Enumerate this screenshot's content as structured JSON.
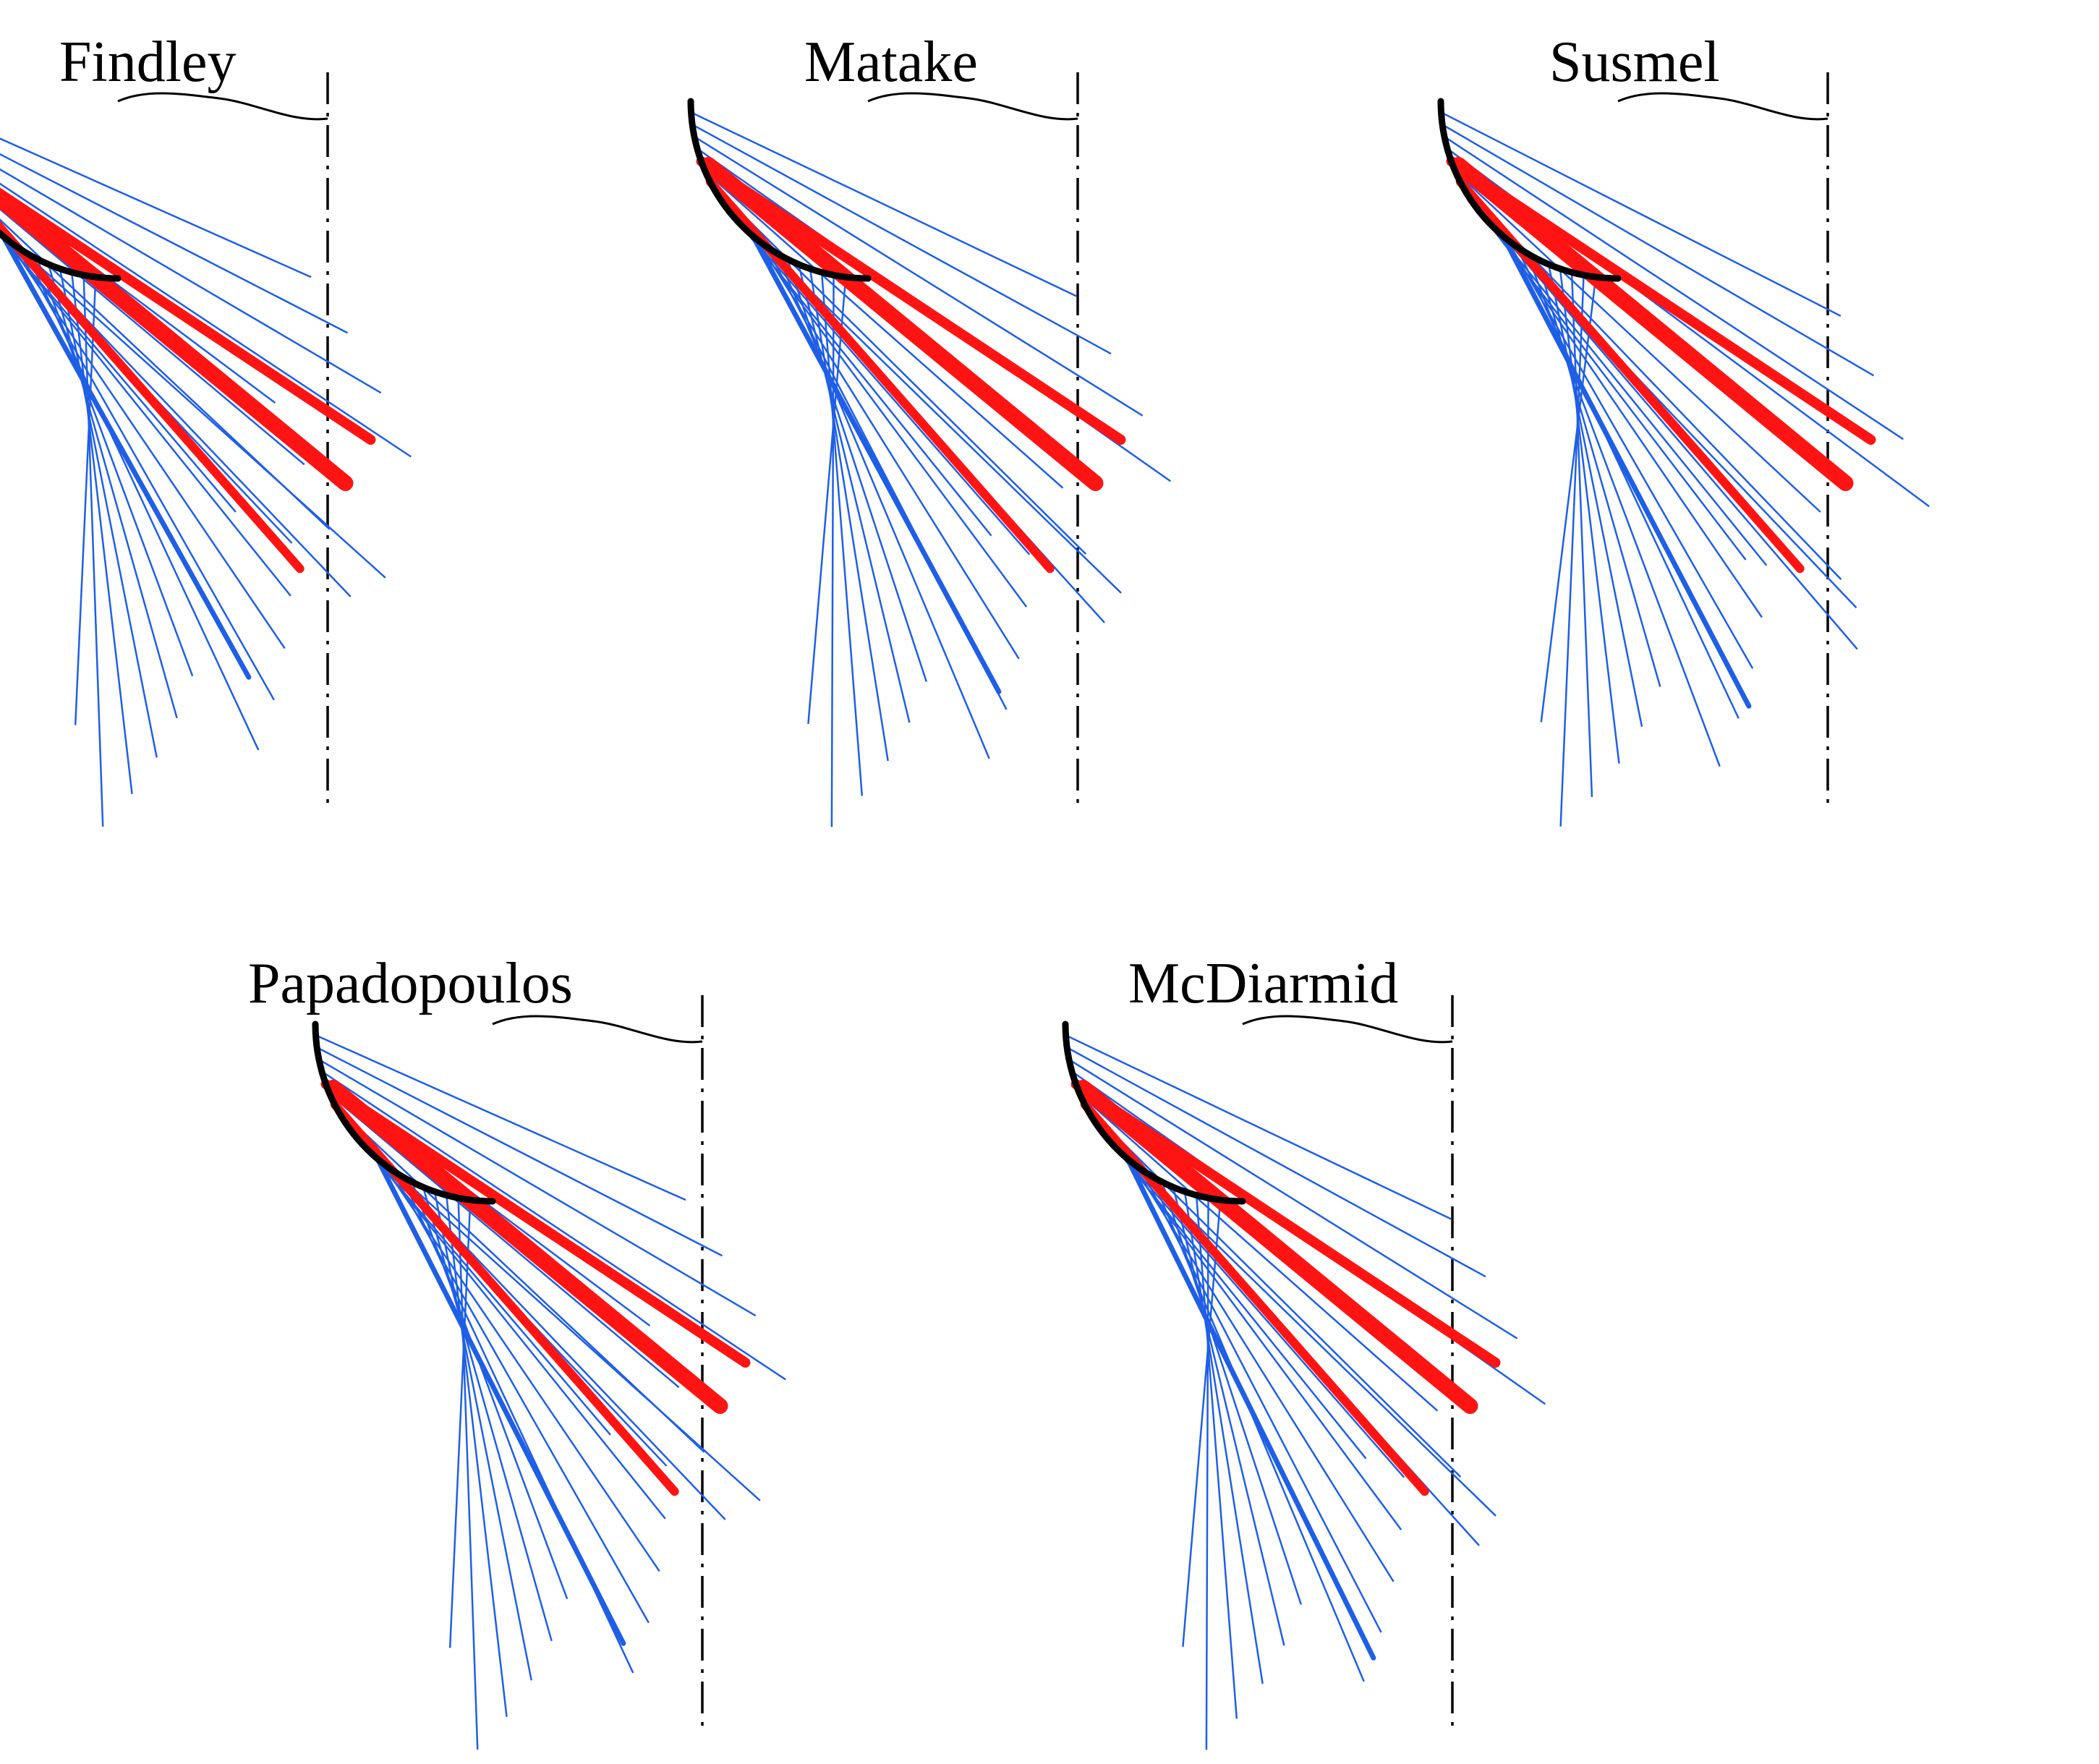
{
  "figure": {
    "panels": [
      {
        "id": "findley",
        "title": "Findley"
      },
      {
        "id": "matake",
        "title": "Matake"
      },
      {
        "id": "susmel",
        "title": "Susmel"
      },
      {
        "id": "papadopoulos",
        "title": "Papadopoulos"
      },
      {
        "id": "mcdiarmid",
        "title": "McDiarmid"
      }
    ],
    "colors": {
      "predicted_planes": "#1f5fe6",
      "experimental_planes": "#ff1414",
      "outline": "#000000"
    }
  }
}
